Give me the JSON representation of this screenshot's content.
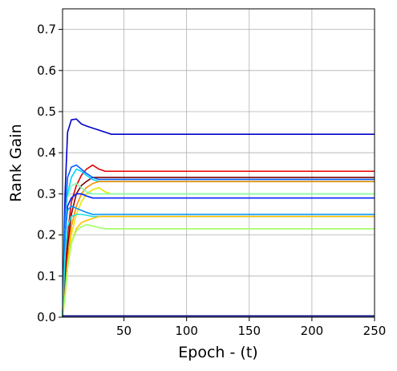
{
  "chart_data": {
    "type": "line",
    "xlabel": "Epoch - (t)",
    "ylabel": "Rank Gain",
    "grid": true,
    "xlim": [
      1,
      250
    ],
    "ylim": [
      0,
      0.75
    ],
    "xticks": [
      50,
      100,
      150,
      200,
      250
    ],
    "yticks": [
      {
        "value": 0,
        "label": "0.0"
      },
      0.1,
      0.2,
      0.3,
      0.4,
      0.5,
      0.6,
      0.7
    ],
    "x": [
      1,
      3,
      5,
      8,
      12,
      16,
      20,
      25,
      30,
      35,
      40,
      250
    ],
    "series": [
      {
        "color": "#0000c8",
        "values": [
          0,
          0.3,
          0.45,
          0.48,
          0.482,
          0.47,
          0.465,
          0.46,
          0.455,
          0.45,
          0.445,
          0.445
        ]
      },
      {
        "color": "#e00000",
        "values": [
          0,
          0.1,
          0.2,
          0.28,
          0.32,
          0.345,
          0.36,
          0.37,
          0.36,
          0.355,
          0.355,
          0.355
        ]
      },
      {
        "color": "#800000",
        "values": [
          0,
          0.08,
          0.17,
          0.25,
          0.3,
          0.32,
          0.33,
          0.34,
          0.34,
          0.34,
          0.34,
          0.34
        ]
      },
      {
        "color": "#0060ff",
        "values": [
          0,
          0.25,
          0.34,
          0.365,
          0.37,
          0.36,
          0.35,
          0.34,
          0.335,
          0.335,
          0.335,
          0.335
        ]
      },
      {
        "color": "#00d4ff",
        "values": [
          0,
          0.2,
          0.3,
          0.34,
          0.36,
          0.355,
          0.345,
          0.335,
          0.33,
          0.33,
          0.33,
          0.33
        ]
      },
      {
        "color": "#ff9000",
        "values": [
          0,
          0.06,
          0.14,
          0.22,
          0.27,
          0.3,
          0.315,
          0.325,
          0.33,
          0.33,
          0.33,
          0.33
        ]
      },
      {
        "color": "#e8e800",
        "values": [
          0,
          0.05,
          0.12,
          0.2,
          0.25,
          0.28,
          0.3,
          0.31,
          0.315,
          0.305,
          0.3,
          0.3
        ]
      },
      {
        "color": "#80ffb0",
        "values": [
          0,
          0.2,
          0.29,
          0.32,
          0.325,
          0.315,
          0.305,
          0.3,
          0.3,
          0.3,
          0.3,
          0.3
        ]
      },
      {
        "color": "#0020ff",
        "values": [
          0,
          0.2,
          0.27,
          0.29,
          0.3,
          0.3,
          0.295,
          0.29,
          0.29,
          0.29,
          0.29,
          0.29
        ]
      },
      {
        "color": "#0090ff",
        "values": [
          0,
          0.2,
          0.26,
          0.27,
          0.265,
          0.26,
          0.255,
          0.25,
          0.25,
          0.25,
          0.25,
          0.25
        ]
      },
      {
        "color": "#20e0e0",
        "values": [
          0,
          0.15,
          0.22,
          0.245,
          0.25,
          0.25,
          0.248,
          0.245,
          0.245,
          0.245,
          0.245,
          0.245
        ]
      },
      {
        "color": "#ffc000",
        "values": [
          0,
          0.05,
          0.12,
          0.18,
          0.215,
          0.23,
          0.235,
          0.24,
          0.245,
          0.245,
          0.245,
          0.245
        ]
      },
      {
        "color": "#a0ff60",
        "values": [
          0,
          0.05,
          0.12,
          0.18,
          0.21,
          0.22,
          0.225,
          0.222,
          0.218,
          0.215,
          0.215,
          0.215
        ]
      },
      {
        "color": "#000080",
        "values": [
          0.003,
          0.003,
          0.003,
          0.003,
          0.003,
          0.003,
          0.003,
          0.003,
          0.003,
          0.003,
          0.003,
          0.003
        ]
      }
    ]
  }
}
